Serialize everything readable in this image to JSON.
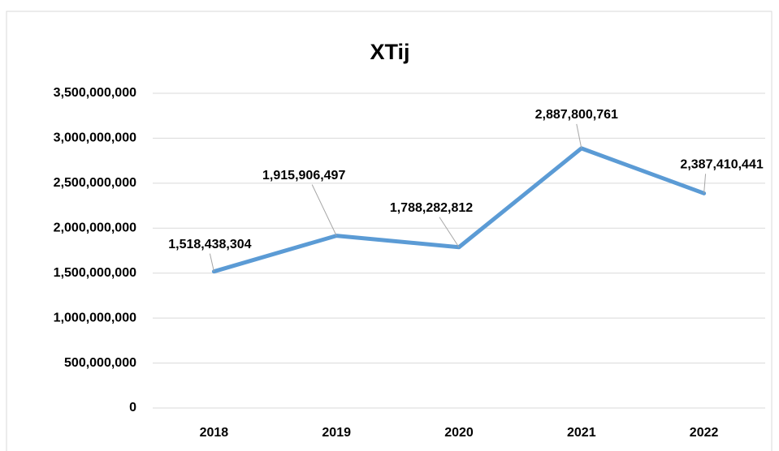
{
  "chart_data": {
    "type": "line",
    "title": "XTij",
    "categories": [
      "2018",
      "2019",
      "2020",
      "2021",
      "2022"
    ],
    "series": [
      {
        "name": "XTij",
        "color": "#5b9bd5",
        "values": [
          1518438304,
          1915906497,
          1788282812,
          2887800761,
          2387410441
        ],
        "value_labels": [
          "1,518,438,304",
          "1,915,906,497",
          "1,788,282,812",
          "2,887,800,761",
          "2,387,410,441"
        ]
      }
    ],
    "ylim": [
      0,
      3500000000
    ],
    "yticks": [
      0,
      {
        "value": 500000000,
        "label": "500,000,000"
      },
      {
        "value": 1000000000,
        "label": "1,000,000,000"
      },
      {
        "value": 1500000000,
        "label": "1,500,000,000"
      },
      {
        "value": 2000000000,
        "label": "2,000,000,000"
      },
      {
        "value": 2500000000,
        "label": "2,500,000,000"
      },
      {
        "value": 3000000000,
        "label": "3,000,000,000"
      },
      {
        "value": 3500000000,
        "label": "3,500,000,000"
      }
    ],
    "grid": true
  }
}
